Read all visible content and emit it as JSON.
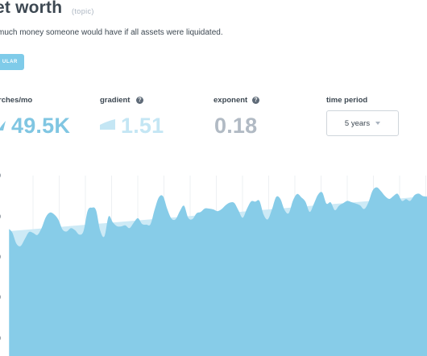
{
  "header": {
    "title": "et worth",
    "topic_badge": "(topic)",
    "description": "much money someone would have if all assets were liquidated."
  },
  "tab_pill": {
    "label": "ULAR"
  },
  "metrics": {
    "searches": {
      "label": "rches/mo",
      "value": "49.5K"
    },
    "gradient": {
      "label": "gradient",
      "value": "1.51"
    },
    "exponent": {
      "label": "exponent",
      "value": "0.18"
    },
    "time_period": {
      "label": "time period",
      "selected": "5 years"
    }
  },
  "icons": {
    "help": "question-circle-icon",
    "trend_up": "trend-up-icon",
    "gradient": "gradient-wedge-icon",
    "dropdown": "chevron-down-icon"
  },
  "colors": {
    "accent": "#80c6e2",
    "accent_light": "#c4e6f4",
    "muted": "#b1bac4",
    "text": "#3d4852",
    "area_fill": "#87cce8",
    "trend_fill": "#cdeaf6"
  },
  "chart_data": {
    "type": "area",
    "title": "",
    "xlabel": "",
    "ylabel": "",
    "y_tick_labels": [
      "0",
      "0",
      "0",
      "0",
      "0"
    ],
    "grid": "vertical",
    "ylim": [
      0,
      100
    ],
    "series": [
      {
        "values": [
          65.5,
          63.4,
          57.6,
          56.4,
          60,
          63.6,
          63.1,
          62.1,
          65.6,
          71.2,
          73.6,
          72.7,
          70,
          64.9,
          63.9,
          65.6,
          64.5,
          62.3,
          64,
          74.5,
          76.1,
          74.8,
          64.3,
          61.4,
          71.6,
          68.6,
          66.6,
          66.5,
          67,
          65.6,
          68.4,
          70.7,
          67.7,
          67.4,
          67.6,
          75.2,
          81.4,
          81.9,
          75.4,
          70.5,
          70.2,
          74.3,
          77.1,
          70.9,
          70.2,
          73.2,
          73.9,
          75.7,
          75.6,
          75.2,
          74.3,
          75.4,
          77.5,
          78.7,
          78.5,
          74.7,
          70.9,
          75.4,
          79.3,
          79.2,
          79.6,
          72.5,
          70.1,
          75.3,
          81.6,
          80.6,
          74.9,
          73.3,
          79.7,
          83.1,
          81.4,
          79.1,
          73.9,
          78.1,
          82.8,
          83.9,
          78.2,
          78.8,
          74.8,
          77.1,
          78.4,
          79.6,
          78.9,
          78.2,
          77.3,
          75.4,
          78.7,
          84.8,
          86.5,
          84.6,
          82,
          80.6,
          82.1,
          83.2,
          79.6,
          80.5,
          79.6,
          82.5,
          83.3,
          82.1,
          81.7
        ]
      },
      {
        "values": [
          64,
          82
        ]
      }
    ]
  }
}
